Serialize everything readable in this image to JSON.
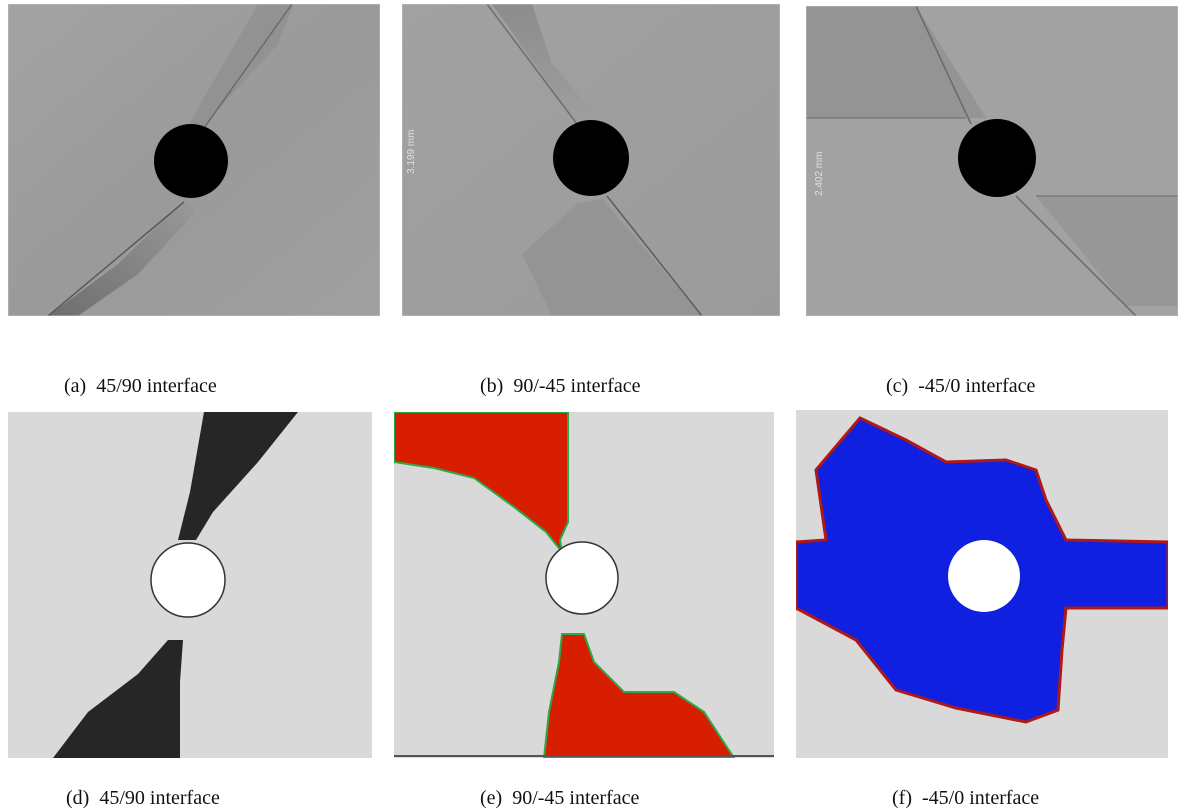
{
  "figure": {
    "top_row": [
      {
        "label": "(a)",
        "caption": "45/90 interface",
        "scale_text": ""
      },
      {
        "label": "(b)",
        "caption": "90/-45 interface",
        "scale_text": "3.199 mm"
      },
      {
        "label": "(c)",
        "caption": "-45/0 interface",
        "scale_text": "2.402 mm"
      }
    ],
    "bottom_row": [
      {
        "label": "(d)",
        "caption": "45/90 interface"
      },
      {
        "label": "(e)",
        "caption": "90/-45 interface"
      },
      {
        "label": "(f)",
        "caption": "-45/0 interface"
      }
    ],
    "colors": {
      "ct_background": "#9c9c9c",
      "hole_ct": "#000000",
      "sim_background": "#d9d9d9",
      "damage_d": "#262626",
      "damage_e": "#d81e00",
      "damage_f": "#0f20e0",
      "damage_f_edge": "#b01818"
    }
  }
}
